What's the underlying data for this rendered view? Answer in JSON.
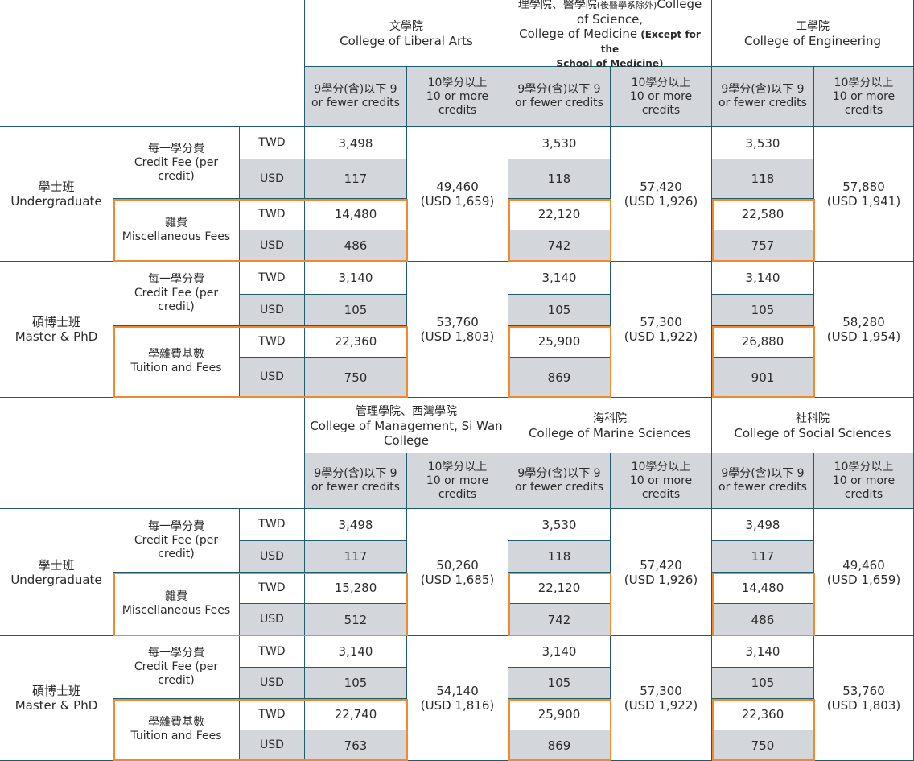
{
  "sections": [
    {
      "colleges": [
        {
          "zh": "文學院",
          "en": "College of Liberal Arts"
        },
        {
          "zh": "理學院、醫學院",
          "zh_note": "(後醫學系除外)",
          "en": "College of Science,\nCollege of Medicine",
          "en_note": "(Except for the\nSchool of Medicine)"
        },
        {
          "zh": "工學院",
          "en": "College of Engineering"
        }
      ],
      "rows": [
        {
          "level": "學士班\nUndergraduate",
          "credit_label": "每一學分費\nCredit Fee (per\ncredit)",
          "misc_label": "雜費\nMiscellaneous Fees",
          "credit_twd": [
            "3,498",
            "3,530",
            "3,530"
          ],
          "credit_usd": [
            "117",
            "118",
            "118"
          ],
          "misc_twd": [
            "14,480",
            "22,120",
            "22,580"
          ],
          "misc_usd": [
            "486",
            "742",
            "757"
          ],
          "flat": [
            "49,460\n(USD 1,659)",
            "57,420\n(USD 1,926)",
            "57,880\n(USD 1,941)"
          ]
        },
        {
          "level": "碩博士班\nMaster & PhD",
          "credit_label": "每一學分費\nCredit Fee (per\ncredit)",
          "misc_label": "學雜費基數\nTuition and Fees",
          "credit_twd": [
            "3,140",
            "3,140",
            "3,140"
          ],
          "credit_usd": [
            "105",
            "105",
            "105"
          ],
          "misc_twd": [
            "22,360",
            "25,900",
            "26,880"
          ],
          "misc_usd": [
            "750",
            "869",
            "901"
          ],
          "flat": [
            "53,760\n(USD 1,803)",
            "57,300\n(USD 1,922)",
            "58,280\n(USD 1,954)"
          ]
        }
      ]
    },
    {
      "colleges": [
        {
          "zh": "管理學院、西灣學院",
          "en": "College of Management, Si Wan\nCollege"
        },
        {
          "zh": "海科院",
          "en": "College of Marine Sciences"
        },
        {
          "zh": "社科院",
          "en": "College of Social Sciences"
        }
      ],
      "rows": [
        {
          "level": "學士班\nUndergraduate",
          "credit_label": "每一學分費\nCredit Fee (per\ncredit)",
          "misc_label": "雜費\nMiscellaneous Fees",
          "credit_twd": [
            "3,498",
            "3,530",
            "3,498"
          ],
          "credit_usd": [
            "117",
            "118",
            "117"
          ],
          "misc_twd": [
            "15,280",
            "22,120",
            "14,480"
          ],
          "misc_usd": [
            "512",
            "742",
            "486"
          ],
          "flat": [
            "50,260\n(USD 1,685)",
            "57,420\n(USD 1,926)",
            "49,460\n(USD 1,659)"
          ]
        },
        {
          "level": "碩博士班\nMaster & PhD",
          "credit_label": "每一學分費\nCredit Fee (per\ncredit)",
          "misc_label": "學雜費基數\nTuition and Fees",
          "credit_twd": [
            "3,140",
            "3,140",
            "3,140"
          ],
          "credit_usd": [
            "105",
            "105",
            "105"
          ],
          "misc_twd": [
            "22,740",
            "25,900",
            "22,360"
          ],
          "misc_usd": [
            "763",
            "869",
            "750"
          ],
          "flat": [
            "54,140\n(USD 1,816)",
            "57,300\n(USD 1,922)",
            "53,760\n(USD 1,803)"
          ]
        }
      ]
    }
  ],
  "credit_headers": {
    "low": "9學分(含)以下 9\nor fewer credits",
    "high": "10學分以上\n10 or more\ncredits"
  },
  "currency": {
    "twd": "TWD",
    "usd": "USD"
  },
  "colors": {
    "border": "#1f5c6b",
    "shade": "#d3d6db",
    "highlight": "#f08a30"
  }
}
